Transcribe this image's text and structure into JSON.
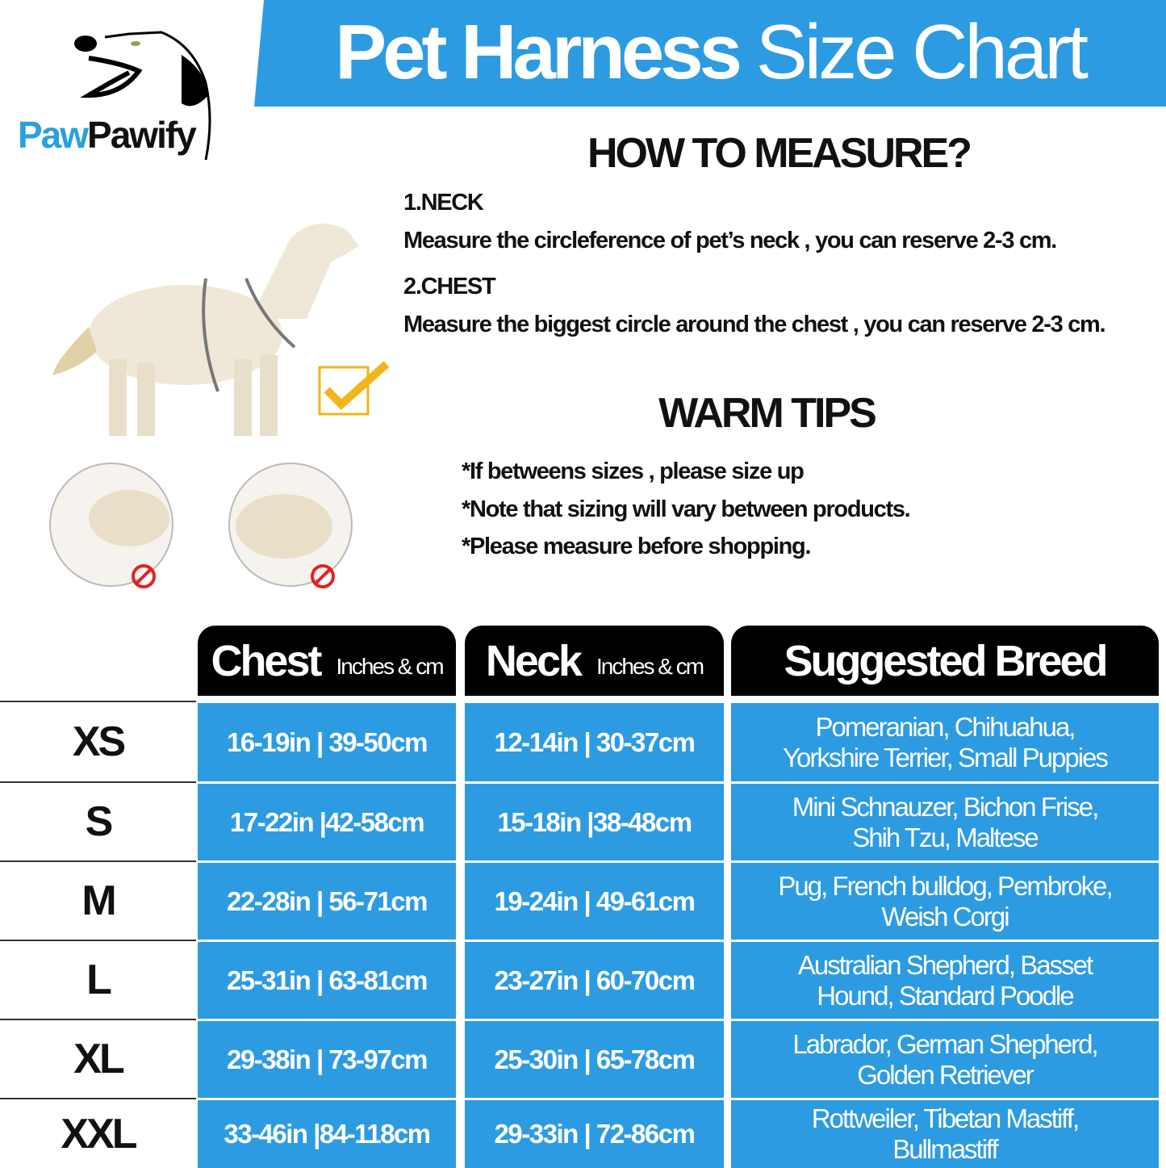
{
  "brand": {
    "logo_part1": "Paw",
    "logo_part2": "Pawify"
  },
  "title": {
    "bold": "Pet Harness",
    "light": "Size Chart"
  },
  "measure": {
    "heading": "HOW TO MEASURE?",
    "neck_label": "1.NECK",
    "neck_text": "Measure the circleference of pet’s neck , you can reserve 2-3 cm.",
    "chest_label": "2.CHEST",
    "chest_text": "Measure the biggest circle around the chest , you can reserve 2-3 cm."
  },
  "tips": {
    "heading": "WARM TIPS",
    "items": [
      "*If betweens sizes , please size up",
      "*Note that sizing will vary between products.",
      "*Please measure before shopping."
    ]
  },
  "colors": {
    "accent": "#2d9be1",
    "header": "#000000",
    "check": "#f2b51c",
    "no_sign": "#e02424"
  },
  "table": {
    "headers": [
      {
        "title": "Chest",
        "unit": "Inches & cm"
      },
      {
        "title": "Neck",
        "unit": "Inches & cm"
      },
      {
        "title": "Suggested Breed",
        "unit": ""
      }
    ],
    "rows": [
      {
        "size": "XS",
        "chest": "16-19in | 39-50cm",
        "neck": "12-14in | 30-37cm",
        "breed1": "Pomeranian,  Chihuahua,",
        "breed2": "Yorkshire Terrier,  Small Puppies"
      },
      {
        "size": "S",
        "chest": "17-22in |42-58cm",
        "neck": "15-18in |38-48cm",
        "breed1": "Mini Schnauzer,  Bichon Frise,",
        "breed2": "Shih Tzu,  Maltese"
      },
      {
        "size": "M",
        "chest": "22-28in | 56-71cm",
        "neck": "19-24in | 49-61cm",
        "breed1": "Pug,  French bulldog,  Pembroke,",
        "breed2": "Weish Corgi"
      },
      {
        "size": "L",
        "chest": "25-31in | 63-81cm",
        "neck": "23-27in | 60-70cm",
        "breed1": "Australian Shepherd,  Basset",
        "breed2": "Hound,  Standard Poodle"
      },
      {
        "size": "XL",
        "chest": "29-38in | 73-97cm",
        "neck": "25-30in | 65-78cm",
        "breed1": "Labrador,  German Shepherd,",
        "breed2": "Golden Retriever"
      },
      {
        "size": "XXL",
        "chest": "33-46in |84-118cm",
        "neck": "29-33in | 72-86cm",
        "breed1": "Rottweiler,  Tibetan Mastiff,",
        "breed2": "Bullmastiff"
      }
    ]
  }
}
